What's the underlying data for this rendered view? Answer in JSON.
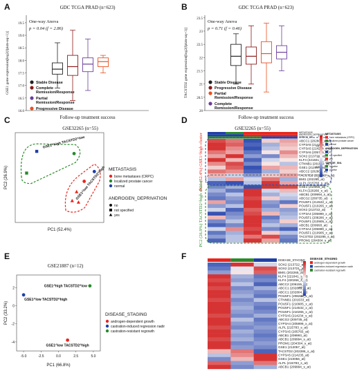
{
  "panels": {
    "A": {
      "letter": "A",
      "title": "GDC TCGA PRAD (n=623)",
      "stat_method": "One-way Anova",
      "stat_text": "p = 0.04 (f = 2.86)",
      "ylabel": "GSE1 gene expression[log2(fpkm-uq+1)]",
      "xlabel": "Follow-up treatment success",
      "yticks": [
        "16.0",
        "16.5",
        "17.0",
        "17.5",
        "18.0",
        "18.5",
        "19.0",
        "19.5"
      ],
      "legend": [
        {
          "label": "Stable Disease",
          "color": "#222222"
        },
        {
          "label": "Complete Remission/Response",
          "color": "#8b1a1a"
        },
        {
          "label": "Partial Remission/Response",
          "color": "#6a3d9a"
        },
        {
          "label": "Progressive Disease",
          "color": "#e8501e"
        }
      ]
    },
    "B": {
      "letter": "B",
      "title": "GDC TCGA PRAD (n=623)",
      "stat_method": "One-way Anova",
      "stat_text": "p = 0.71 (f = 0.46)",
      "ylabel": "TACSTD2 gene expression[log2(fpkm-uq+1)]",
      "xlabel": "Follow-up treatment success",
      "yticks": [
        "20",
        "20.5",
        "21",
        "21.5",
        "22",
        "22.5",
        "23",
        "23.5"
      ],
      "legend": [
        {
          "label": "Stable Disease",
          "color": "#222222"
        },
        {
          "label": "Progressive Disease",
          "color": "#8b1a1a"
        },
        {
          "label": "Partial Remission/Response",
          "color": "#e8501e"
        },
        {
          "label": "Complete Remission/Response",
          "color": "#6a3d9a"
        }
      ]
    },
    "C": {
      "letter": "C",
      "title": "GSE32265 (n=55)",
      "xlabel": "PC1 (52.4%)",
      "ylabel": "PC2 (26.9%)",
      "group1": "GSE1^high TACSTD2^low",
      "group2": "GSE1^low TACSTD2^high",
      "legend_title1": "METASTASIS",
      "legend1": [
        {
          "label": "bone metastases (CRPC)",
          "color": "#e8251e"
        },
        {
          "label": "localized prostate cancer",
          "color": "#2a8a2a"
        },
        {
          "label": "normal",
          "color": "#1f3fa6"
        }
      ],
      "legend_title2": "ANDROGEN_DEPRIVATION",
      "legend2": [
        {
          "label": "no",
          "shape": "circle"
        },
        {
          "label": "not specified",
          "shape": "square"
        },
        {
          "label": "yes",
          "shape": "triangle"
        }
      ]
    },
    "D": {
      "letter": "D",
      "title": "GSE32265 (n=55)",
      "annot_rows": [
        "METASTASIS",
        "ANDROGEN_DEPRIVATION",
        "TAPNGE_SNL"
      ],
      "cluster1": "PC1 (52.4%) GSE1^high cluster",
      "cluster2": "PC2 (26.9%) TACSTD2^high cluster",
      "genes": [
        "ABCC1 (202805_s_at)",
        "CYP3A5 (214235_at)",
        "CYP3A5 (214234_s_at)",
        "CYP3A5 (205765_at)",
        "SOX2 (213721_at)",
        "KLF4 (221841_s_at)",
        "CTNNB1 (201533_at)",
        "GSE1 (212057_at)",
        "ABCC2 (202804_at)",
        "TACSTD2 (202286_s_at)",
        "BMI1 (202265_at)",
        "ALPL (215783_s_at)",
        "GSE1 (210056_at)",
        "KLF4 (220266_s_at)",
        "ABCB1 (209994_s_at)",
        "ABCG2 (209735_at)",
        "POU5F1 (214532_x_at)",
        "POU5F1 (210265_x_at)",
        "SOX2 (213722_at)",
        "CYP3A4 (205999_x_at)",
        "POU5F1 (208286_x_at)",
        "POU5F1 (210905_x_at)",
        "ABCB1 (209993_at)",
        "CYP3A4 (205999_x_at)",
        "POU5F1 (210905_x_at)",
        "TACSTD2 (202286_s_at)",
        "PROM1 (204304_s_at)"
      ],
      "legend_title1": "METASTASIS",
      "legend1": [
        "bone metastases (CRPC)",
        "localized prostate cancer",
        "normal"
      ],
      "legend_title2": "ANDROGEN_DEPRIVATION",
      "legend2": [
        "no",
        "not specified",
        "yes"
      ],
      "legend_title3": "TAPNGE_SNL",
      "legend3": [
        "negative",
        "positive"
      ],
      "scale": [
        "1",
        "0.5",
        "0",
        "-0.5",
        "-1"
      ]
    },
    "E": {
      "letter": "E",
      "title": "GSE21887 (n=12)",
      "xlabel": "PC1 (66.8%)",
      "ylabel": "PC2 (33.2%)",
      "xticks": [
        "-5.0",
        "-2.5",
        "0.0",
        "2.5",
        "5.0"
      ],
      "yticks": [
        "2",
        "0",
        "-2",
        "-4"
      ],
      "point_labels": [
        "GSE1^high TACSTD2^low",
        "GSE1^low TACSTD2^high",
        "GSE1^low TACSTD2^high"
      ],
      "legend_title": "DISEASE_STAGING",
      "legend": [
        {
          "label": "androgen-dependent growth",
          "color": "#e8251e"
        },
        {
          "label": "castration-induced regression nadir",
          "color": "#1f3fa6"
        },
        {
          "label": "castration-resistant regrowth",
          "color": "#2a8a2a"
        }
      ]
    },
    "F": {
      "letter": "F",
      "annot_row": "DISEASE_STAGING",
      "genes": [
        "SOX2 (213722_at)",
        "SOX2 (213721_at)",
        "BMI1 (202265_at)",
        "KLF4 (221841_s_at)",
        "KLF4 (220266_s_at)",
        "ABCC2 (206155_at)",
        "ABCC1 (202805_s_at)",
        "ABCC1 (202804_at)",
        "POU5F1 (208286_x_at)",
        "CTNNB1 (201533_at)",
        "POU5F1 (210905_x_at)",
        "POU5F1 (214532_x_at)",
        "POU5F1 (210265_x_at)",
        "CYP3A5 (214234_s_at)",
        "ABCG2 (209735_at)",
        "CYP3A4 (205999_x_at)",
        "ALPL (215783_s_at)",
        "CYP3A5 (205765_at)",
        "ABCB1 (209993_at)",
        "ABCB1 (209994_s_at)",
        "PROM1 (204304_s_at)",
        "GSE1 (212057_at)",
        "TACSTD2 (202286_s_at)",
        "CYP3A5 (214235_at)",
        "GSE1 (210056_at)",
        "ALPL (215783_s_at)",
        "ABCB1 (209994_s_at)"
      ],
      "legend_title": "DISEASE_STAGING",
      "legend": [
        "androgen-dependent growth",
        "castration-induced regression nadir",
        "castration-resistant regrowth"
      ],
      "scale": [
        "1",
        "0.5",
        "0",
        "-0.5",
        "-1"
      ]
    }
  },
  "chart_data": [
    {
      "type": "box",
      "panel": "A",
      "categories": [
        "Stable Disease",
        "Complete Remission/Response",
        "Partial Remission/Response",
        "Progressive Disease"
      ],
      "colors": [
        "#222222",
        "#8b1a1a",
        "#6a3d9a",
        "#e8501e"
      ],
      "ylim": [
        16.0,
        19.8
      ],
      "boxes": [
        {
          "min": 16.9,
          "q1": 17.45,
          "median": 17.65,
          "q3": 17.9,
          "max": 18.7
        },
        {
          "min": 16.4,
          "q1": 17.4,
          "median": 17.75,
          "q3": 18.2,
          "max": 19.2
        },
        {
          "min": 16.8,
          "q1": 17.55,
          "median": 17.85,
          "q3": 18.1,
          "max": 18.85
        },
        {
          "min": 17.5,
          "q1": 17.75,
          "median": 17.95,
          "q3": 18.1,
          "max": 18.2
        }
      ]
    },
    {
      "type": "box",
      "panel": "B",
      "categories": [
        "Stable Disease",
        "Progressive Disease",
        "Partial Remission/Response",
        "Complete Remission/Response"
      ],
      "colors": [
        "#222222",
        "#8b1a1a",
        "#e8501e",
        "#6a3d9a"
      ],
      "ylim": [
        20.0,
        23.6
      ],
      "boxes": [
        {
          "min": 21.0,
          "q1": 21.7,
          "median": 22.05,
          "q3": 22.5,
          "max": 22.9
        },
        {
          "min": 21.0,
          "q1": 21.75,
          "median": 22.05,
          "q3": 22.4,
          "max": 23.2
        },
        {
          "min": 20.7,
          "q1": 21.8,
          "median": 22.15,
          "q3": 22.6,
          "max": 23.3
        },
        {
          "min": 21.5,
          "q1": 21.95,
          "median": 22.2,
          "q3": 22.45,
          "max": 23.2
        }
      ]
    },
    {
      "type": "scatter",
      "panel": "C",
      "xlim": [
        -8,
        6
      ],
      "ylim": [
        -6,
        6
      ],
      "points": [
        {
          "x": -6.2,
          "y": 0.6,
          "color": "#2a8a2a",
          "shape": "square"
        },
        {
          "x": 1.3,
          "y": 3.2,
          "color": "#2a8a2a",
          "shape": "circle"
        },
        {
          "x": -4.6,
          "y": 3.5,
          "color": "#1f3fa6",
          "shape": "square"
        },
        {
          "x": 4.5,
          "y": 0.8,
          "color": "#1f3fa6",
          "shape": "circle"
        },
        {
          "x": 2.9,
          "y": -0.5,
          "color": "#e8251e",
          "shape": "circle"
        },
        {
          "x": 1.7,
          "y": -1.9,
          "color": "#e8251e",
          "shape": "triangle"
        },
        {
          "x": 1.0,
          "y": -3.1,
          "color": "#e8251e",
          "shape": "triangle"
        },
        {
          "x": 2.0,
          "y": -3.3,
          "color": "#e8251e",
          "shape": "triangle"
        }
      ]
    },
    {
      "type": "heatmap",
      "panel": "D",
      "columns": 5,
      "annot_colors": [
        [
          "#1f3fa6",
          "#2a8a2a",
          "#e8251e",
          "#e8251e",
          "#e8251e"
        ],
        [
          "#1f3fa6",
          "#1f3fa6",
          "#e8251e",
          "#e8251e",
          "#e8251e"
        ],
        [
          "#2a8a2a",
          "#2a8a2a",
          "#2a8a2a",
          "#1f3fa6",
          "#1f3fa6"
        ]
      ],
      "values": [
        [
          0.8,
          0.6,
          -0.9,
          0.2,
          0.4
        ],
        [
          0.9,
          0.7,
          -0.8,
          -0.4,
          0.3
        ],
        [
          0.9,
          0.5,
          -0.9,
          -0.3,
          0.2
        ],
        [
          0.6,
          0.4,
          -0.7,
          0.1,
          0.5
        ],
        [
          0.4,
          0.9,
          -0.5,
          -0.6,
          0.3
        ],
        [
          0.9,
          0.3,
          -0.8,
          -0.2,
          0.1
        ],
        [
          0.5,
          0.8,
          -0.6,
          0.1,
          -0.3
        ],
        [
          0.2,
          0.7,
          -0.9,
          0.4,
          0.3
        ],
        [
          0.6,
          0.5,
          -0.8,
          -0.4,
          0.2
        ],
        [
          0.3,
          -0.2,
          -0.5,
          0.2,
          0.4
        ],
        [
          -0.3,
          0.4,
          -0.2,
          0.6,
          -0.4
        ],
        [
          -0.8,
          -0.9,
          -0.3,
          0.9,
          0.4
        ],
        [
          -0.6,
          -0.4,
          -0.9,
          0.9,
          0.8
        ],
        [
          -0.4,
          -0.7,
          0.9,
          -0.2,
          0.3
        ],
        [
          -0.6,
          -0.3,
          0.9,
          -0.4,
          -0.2
        ],
        [
          -0.7,
          -0.5,
          0.8,
          0.2,
          -0.3
        ],
        [
          0.4,
          -0.6,
          0.9,
          -0.5,
          -0.7
        ],
        [
          -0.5,
          -0.3,
          0.9,
          -0.6,
          0.2
        ],
        [
          -0.2,
          -0.8,
          0.7,
          -0.4,
          -0.5
        ],
        [
          -0.9,
          -0.6,
          0.8,
          0.3,
          -0.4
        ],
        [
          0.3,
          -0.5,
          0.9,
          -0.7,
          -0.3
        ],
        [
          -0.6,
          -0.3,
          0.9,
          -0.5,
          0.2
        ],
        [
          -0.8,
          -0.6,
          0.9,
          -0.3,
          -0.4
        ],
        [
          -0.2,
          0.5,
          0.8,
          -0.6,
          -0.8
        ],
        [
          -0.7,
          -0.4,
          0.9,
          0.2,
          -0.3
        ],
        [
          -0.5,
          -0.3,
          0.6,
          0.8,
          -0.6
        ],
        [
          -0.8,
          -0.3,
          0.9,
          0.4,
          -0.7
        ]
      ],
      "legend_colors": {
        "metastasis": [
          "#e8251e",
          "#2a8a2a",
          "#1f3fa6"
        ],
        "androgen": [
          "#1f3fa6",
          "#2a8a2a",
          "#e8251e"
        ],
        "tapnge": [
          "#2a8a2a",
          "#1f3fa6"
        ]
      }
    },
    {
      "type": "scatter",
      "panel": "E",
      "xlim": [
        -6,
        6
      ],
      "ylim": [
        -5,
        3.4
      ],
      "points": [
        {
          "x": -5.0,
          "y": 1.2,
          "color": "#1f3fa6",
          "label_index": 1
        },
        {
          "x": 4.5,
          "y": 2.2,
          "color": "#2a8a2a",
          "label_index": 0
        },
        {
          "x": 1.3,
          "y": -3.8,
          "color": "#e8251e",
          "label_index": 2
        }
      ]
    },
    {
      "type": "heatmap",
      "panel": "F",
      "columns": 3,
      "annot_colors": [
        [
          "#e8251e",
          "#2a8a2a",
          "#1f3fa6"
        ]
      ],
      "values": [
        [
          -0.8,
          0.9,
          -0.2
        ],
        [
          -0.7,
          -0.1,
          0.8
        ],
        [
          -0.5,
          0.1,
          0.7
        ],
        [
          0.9,
          -0.4,
          -0.7
        ],
        [
          0.8,
          -0.5,
          -0.6
        ],
        [
          0.9,
          -0.3,
          -0.8
        ],
        [
          0.8,
          -0.6,
          -0.4
        ],
        [
          0.9,
          -0.5,
          -0.6
        ],
        [
          0.9,
          -0.4,
          -0.7
        ],
        [
          0.8,
          -0.6,
          -0.3
        ],
        [
          0.9,
          -0.5,
          -0.6
        ],
        [
          0.9,
          -0.4,
          -0.7
        ],
        [
          0.9,
          -0.5,
          -0.6
        ],
        [
          0.8,
          -0.6,
          -0.4
        ],
        [
          0.9,
          -0.3,
          -0.7
        ],
        [
          0.9,
          -0.5,
          -0.6
        ],
        [
          0.8,
          -0.6,
          -0.5
        ],
        [
          0.9,
          -0.4,
          -0.6
        ],
        [
          0.9,
          -0.5,
          -0.7
        ],
        [
          0.8,
          -0.4,
          -0.6
        ],
        [
          0.9,
          -0.6,
          -0.5
        ],
        [
          0.9,
          -0.5,
          -0.6
        ],
        [
          0.3,
          0.6,
          -0.8
        ],
        [
          -0.3,
          0.5,
          0.9
        ],
        [
          -0.6,
          0.3,
          0.9
        ],
        [
          0.7,
          -0.5,
          0.6
        ],
        [
          0.9,
          -0.6,
          -0.4
        ]
      ],
      "legend_colors": [
        "#e8251e",
        "#1f3fa6",
        "#2a8a2a"
      ]
    }
  ]
}
